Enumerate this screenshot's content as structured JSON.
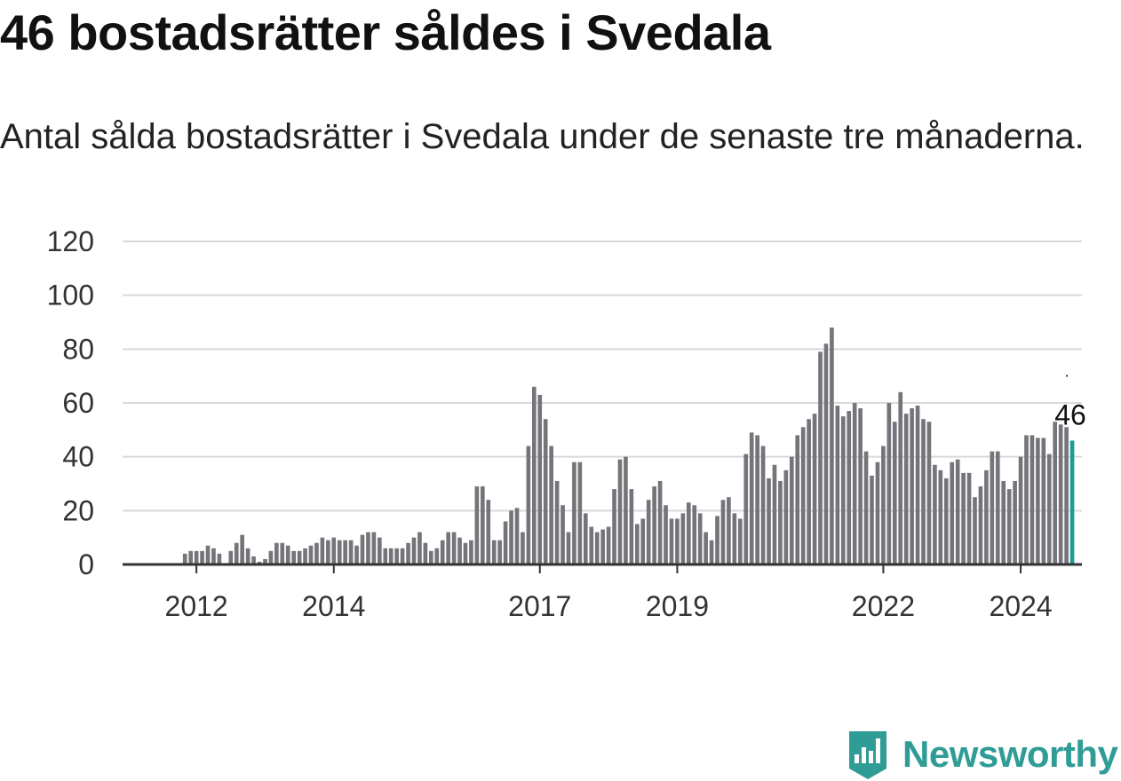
{
  "header": {
    "title": "46 bostadsrätter såldes i Svedala",
    "subtitle": "Antal sålda bostadsrätter i Svedala under de senaste tre månaderna."
  },
  "brand": {
    "name": "Newsworthy",
    "color": "#2f9c95",
    "icon": "newsworthy-logo-icon"
  },
  "colors": {
    "bar": "#75747a",
    "highlight": "#1a9e93",
    "grid": "#d9d9d9",
    "axis": "#333333"
  },
  "chart_data": {
    "type": "bar",
    "title": "46 bostadsrätter såldes i Svedala",
    "subtitle": "Antal sålda bostadsrätter i Svedala under de senaste tre månaderna.",
    "xlabel": "",
    "ylabel": "",
    "ylim": [
      0,
      120
    ],
    "yticks": [
      0,
      20,
      40,
      60,
      80,
      100,
      120
    ],
    "grid": true,
    "first_month": "2011-01",
    "xticks": [
      {
        "label": "2012",
        "month": "2012-01"
      },
      {
        "label": "2014",
        "month": "2014-01"
      },
      {
        "label": "2017",
        "month": "2017-01"
      },
      {
        "label": "2019",
        "month": "2019-01"
      },
      {
        "label": "2022",
        "month": "2022-01"
      },
      {
        "label": "2024",
        "month": "2024-01"
      }
    ],
    "values": [
      0,
      0,
      0,
      0,
      0,
      0,
      0,
      0,
      0,
      0,
      4,
      5,
      5,
      5,
      7,
      6,
      4,
      0,
      5,
      8,
      11,
      6,
      3,
      1,
      2,
      5,
      8,
      8,
      7,
      5,
      5,
      6,
      7,
      8,
      10,
      9,
      10,
      9,
      9,
      9,
      7,
      11,
      12,
      12,
      10,
      6,
      6,
      6,
      6,
      8,
      10,
      12,
      8,
      5,
      6,
      9,
      12,
      12,
      10,
      8,
      9,
      29,
      29,
      24,
      9,
      9,
      16,
      20,
      21,
      12,
      44,
      66,
      63,
      54,
      44,
      31,
      22,
      12,
      38,
      38,
      19,
      14,
      12,
      13,
      14,
      28,
      39,
      40,
      28,
      15,
      17,
      24,
      29,
      31,
      22,
      17,
      17,
      19,
      23,
      22,
      19,
      12,
      9,
      18,
      24,
      25,
      19,
      17,
      41,
      49,
      48,
      44,
      32,
      37,
      31,
      35,
      40,
      48,
      51,
      54,
      56,
      79,
      82,
      88,
      59,
      55,
      57,
      60,
      58,
      42,
      33,
      38,
      44,
      60,
      53,
      64,
      56,
      58,
      59,
      54,
      53,
      37,
      35,
      32,
      38,
      39,
      34,
      34,
      25,
      29,
      35,
      42,
      42,
      31,
      28,
      31,
      40,
      48,
      48,
      47,
      47,
      41,
      53,
      52,
      51,
      46
    ],
    "highlight_last": true,
    "annotations": [
      {
        "label": "46",
        "target": "last"
      }
    ]
  }
}
